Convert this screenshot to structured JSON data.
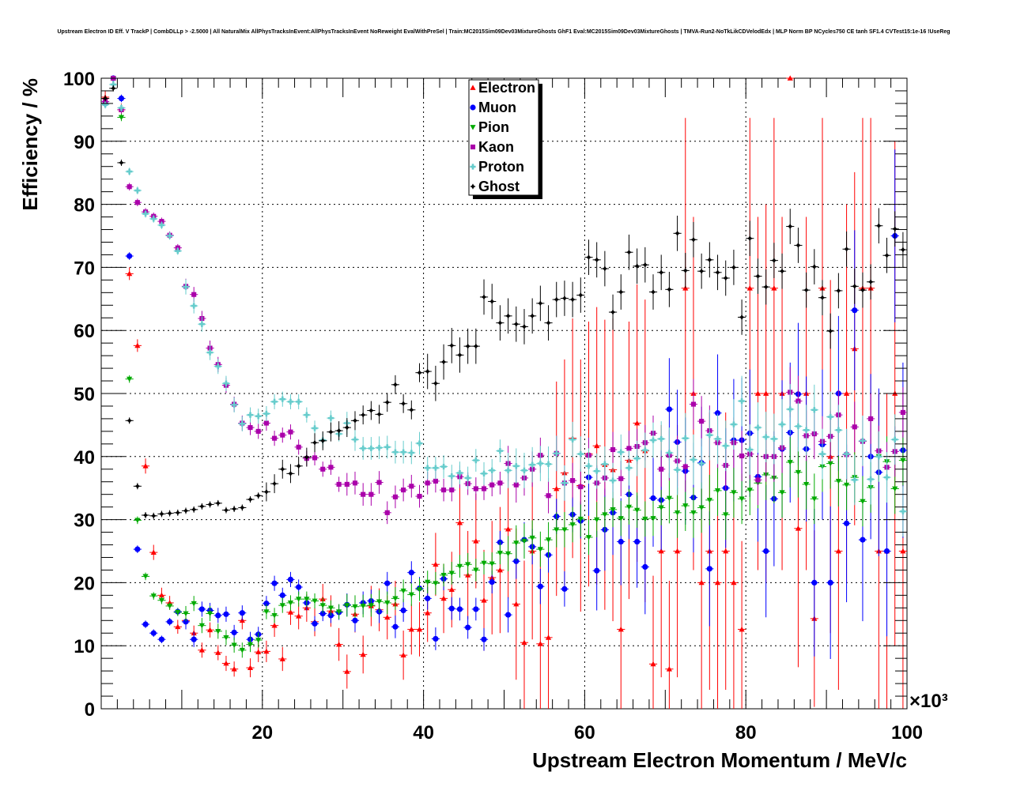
{
  "chart_data": {
    "type": "scatter",
    "title": "Upstream Electron ID Eff. V TrackP | CombDLLp > -2.5000 | All NaturalMix AllPhysTracksInEvent:AllPhysTracksInEvent NoReweight EvalWithPreSel | Train:MC2015Sim09Dev03MixtureGhosts GhF1 Eval:MC2015Sim09Dev03MixtureGhosts | TMVA-Run2-NoTkLikCDVelodEdx | MLP Norm BP NCycles750 CE tanh SF1.4 CVTest15:1e-16 !UseReg",
    "xlabel": "Upstream Electron Momentum / MeV/c",
    "ylabel": "Efficiency / %",
    "x_exponent_label": "×10³",
    "xlim": [
      0,
      100
    ],
    "ylim": [
      0,
      100
    ],
    "x_ticks": [
      20,
      40,
      60,
      80,
      100
    ],
    "y_ticks": [
      0,
      10,
      20,
      30,
      40,
      50,
      60,
      70,
      80,
      90,
      100
    ],
    "grid": true,
    "legend_position": "top-center",
    "x": [
      0.5,
      1.5,
      2.5,
      3.5,
      4.5,
      5.5,
      6.5,
      7.5,
      8.5,
      9.5,
      10.5,
      11.5,
      12.5,
      13.5,
      14.5,
      15.5,
      16.5,
      17.5,
      18.5,
      19.5,
      20.5,
      21.5,
      22.5,
      23.5,
      24.5,
      25.5,
      26.5,
      27.5,
      28.5,
      29.5,
      30.5,
      31.5,
      32.5,
      33.5,
      34.5,
      35.5,
      36.5,
      37.5,
      38.5,
      39.5,
      40.5,
      41.5,
      42.5,
      43.5,
      44.5,
      45.5,
      46.5,
      47.5,
      48.5,
      49.5,
      50.5,
      51.5,
      52.5,
      53.5,
      54.5,
      55.5,
      56.5,
      57.5,
      58.5,
      59.5,
      60.5,
      61.5,
      62.5,
      63.5,
      64.5,
      65.5,
      66.5,
      67.5,
      68.5,
      69.5,
      70.5,
      71.5,
      72.5,
      73.5,
      74.5,
      75.5,
      76.5,
      77.5,
      78.5,
      79.5,
      80.5,
      81.5,
      82.5,
      83.5,
      84.5,
      85.5,
      86.5,
      87.5,
      88.5,
      89.5,
      90.5,
      91.5,
      92.5,
      93.5,
      94.5,
      95.5,
      96.5,
      97.5,
      98.5,
      99.5
    ],
    "series": [
      {
        "name": "Electron",
        "color": "#ff0000",
        "marker": "triangle-up",
        "values": [
          97,
          100,
          95,
          69,
          57.6,
          38.5,
          24.8,
          18,
          16.8,
          13,
          14,
          12,
          9.3,
          12.5,
          8.9,
          7.2,
          6.3,
          14,
          6.5,
          9,
          9.1,
          13.2,
          7.9,
          15.3,
          14.7,
          16,
          13.8,
          17.4,
          15.5,
          10.2,
          5.9,
          15,
          8.6,
          16.3,
          15.7,
          14.5,
          16.6,
          8.5,
          12.6,
          12.6,
          15.2,
          22.9,
          17.5,
          18.9,
          29.5,
          21.2,
          26.6,
          17.2,
          20.8,
          22,
          28.5,
          16.6,
          10.5,
          25,
          10.3,
          11.3,
          34.9,
          37.4,
          42.9,
          35.4,
          40.4,
          41.7,
          38.7,
          37.9,
          12.6,
          39.4,
          45.3,
          40.9,
          7.1,
          25,
          6.3,
          25,
          66.7,
          50,
          20,
          25,
          20,
          25,
          20,
          12.6,
          66.7,
          50,
          50,
          66.7,
          50,
          100,
          28.6,
          50,
          14.3,
          66.7,
          40,
          25,
          50,
          57.1,
          66.7,
          66.7,
          25,
          25,
          50,
          25
        ],
        "err": [
          1,
          0,
          1,
          1,
          1,
          1.2,
          1.2,
          1.2,
          1.1,
          1.1,
          1.1,
          1.2,
          1.2,
          1.2,
          1.2,
          1.2,
          1.2,
          1.4,
          1.5,
          1.6,
          1.7,
          1.8,
          1.9,
          2,
          2.1,
          2.2,
          2.3,
          2.4,
          2.5,
          2.6,
          2.7,
          2.9,
          3,
          3.2,
          3.4,
          3.5,
          3.7,
          3.9,
          4,
          4.3,
          4.6,
          5,
          5.5,
          6,
          6.5,
          7,
          7.5,
          8,
          9,
          10,
          11,
          12,
          13,
          14,
          15,
          16,
          17,
          18,
          19,
          20,
          21,
          22,
          23,
          24,
          14,
          22,
          22,
          24,
          14,
          20,
          14,
          20,
          27,
          28,
          20,
          22,
          20,
          22,
          20,
          14,
          27,
          28,
          30,
          27,
          28,
          0,
          22,
          28,
          14,
          27,
          28,
          22,
          30,
          28,
          27,
          27,
          25,
          25,
          40,
          25
        ]
      },
      {
        "name": "Muon",
        "color": "#0000ff",
        "marker": "circle",
        "values": [
          96,
          100,
          96.8,
          71.8,
          25.3,
          13.4,
          12,
          11,
          13.8,
          15.4,
          13.8,
          11,
          15.8,
          15.6,
          14.8,
          15,
          12.1,
          15.2,
          11,
          11.8,
          16.7,
          19.9,
          18,
          20.5,
          19.3,
          16.8,
          13.5,
          15.1,
          14.8,
          15.3,
          16.5,
          14,
          16.8,
          17.1,
          15.4,
          19.9,
          13,
          15.6,
          21.6,
          19.1,
          17.5,
          11.1,
          20.6,
          15.9,
          15.8,
          12.9,
          15.8,
          11,
          20.1,
          26.4,
          14.9,
          23.4,
          26.8,
          25.7,
          19.4,
          24.4,
          30.5,
          19,
          30.8,
          29.8,
          36.7,
          21.9,
          28.4,
          31.1,
          26.5,
          34,
          26.5,
          22.5,
          33.4,
          33.1,
          47.5,
          42.3,
          37.7,
          33.5,
          39,
          22.2,
          46.9,
          35,
          42.6,
          42.6,
          43.7,
          36.8,
          25,
          33.3,
          41.2,
          43.8,
          49.9,
          41.2,
          20,
          41.9,
          20,
          50,
          29.4,
          63.2,
          26.8,
          40,
          37.5,
          25,
          75,
          41
        ]
      },
      {
        "name": "Pion",
        "color": "#00aa00",
        "marker": "triangle-down",
        "values": [
          96,
          100,
          93.8,
          52.3,
          29.9,
          21,
          17.9,
          17.2,
          16.3,
          15.3,
          15.1,
          16.7,
          13.2,
          15.1,
          12.3,
          11.3,
          10.1,
          9.3,
          10.2,
          10.9,
          15.4,
          14.8,
          16.4,
          16.8,
          17.4,
          17.4,
          17.1,
          16.4,
          16,
          15.4,
          16.4,
          16.2,
          16.3,
          16.4,
          17,
          16.8,
          17.5,
          18.7,
          18.1,
          18.9,
          20.1,
          19.9,
          21.2,
          21.5,
          22.6,
          22.9,
          22,
          23.1,
          23,
          24.7,
          24.6,
          26.3,
          26.6,
          27.1,
          25.3,
          26.8,
          28.4,
          28.4,
          29.2,
          30.1,
          27.2,
          30,
          30.8,
          31.6,
          30.2,
          32,
          31.5,
          30.1,
          30.2,
          31.9,
          33.4,
          31.1,
          32.2,
          31.1,
          31.9,
          33.1,
          34.6,
          30.8,
          34.3,
          33.3,
          34.7,
          35.8,
          37.1,
          36.6,
          34.3,
          39.1,
          37.5,
          35.6,
          33.3,
          38.4,
          38.9,
          36.1,
          35.5,
          36.7,
          32.9,
          35.1,
          40,
          39.2,
          34.9,
          39.4
        ]
      },
      {
        "name": "Kaon",
        "color": "#aa00aa",
        "marker": "square",
        "values": [
          96.3,
          100,
          95,
          82.8,
          80.3,
          78.8,
          78.1,
          77.3,
          75.1,
          73.1,
          67,
          65.7,
          61.9,
          57.2,
          54.6,
          51.3,
          48.3,
          45.3,
          44.6,
          44,
          45.3,
          42.9,
          43.4,
          43.9,
          41.5,
          39.7,
          39.8,
          38,
          38.3,
          35.6,
          35.6,
          35.8,
          34,
          34,
          35.9,
          31.1,
          33.6,
          34.7,
          35.3,
          33.7,
          35.8,
          36.1,
          34.7,
          34.7,
          36.8,
          35.7,
          34.9,
          34.9,
          35.5,
          35.8,
          38.9,
          35.5,
          36.6,
          38,
          40.2,
          33.8,
          40.5,
          35.8,
          36.2,
          35.2,
          40.2,
          35.8,
          36.6,
          41.1,
          36.5,
          41.3,
          41.6,
          42.2,
          43.7,
          38,
          40.2,
          39.3,
          38.4,
          48.3,
          45.6,
          44.1,
          42.2,
          38.6,
          42.2,
          40.1,
          40.4,
          36.3,
          40,
          40,
          41.4,
          50.2,
          48.8,
          43.3,
          43.6,
          42.4,
          43.2,
          46.6,
          40.3,
          44.7,
          42.4,
          46,
          40.9,
          38.3,
          40.8,
          47
        ]
      },
      {
        "name": "Proton",
        "color": "#66cccc",
        "marker": "cross",
        "values": [
          95.8,
          99,
          95.3,
          85.2,
          82.2,
          78.5,
          77.7,
          76.7,
          75,
          72.6,
          66.9,
          63.9,
          61,
          56.5,
          54.3,
          51.6,
          48.2,
          45.2,
          46.6,
          46.4,
          46.8,
          48.7,
          49.1,
          48.7,
          48.7,
          46.6,
          44.5,
          42.6,
          46.1,
          43.6,
          45.3,
          42.7,
          41.3,
          41.3,
          41.4,
          41.5,
          40.7,
          40.7,
          40.6,
          42.1,
          38.2,
          38.2,
          38.4,
          36.9,
          37.4,
          36.6,
          39.4,
          37.3,
          37.8,
          40.9,
          37.8,
          38.5,
          37.8,
          38.7,
          38.9,
          38.8,
          40.5,
          35.8,
          42.7,
          40.4,
          38.5,
          37.7,
          38.8,
          36.2,
          40.7,
          38.2,
          39.7,
          41,
          42.6,
          42.8,
          40.6,
          37.9,
          42.9,
          39.5,
          38.9,
          43.4,
          42.8,
          41.7,
          45.1,
          48.8,
          41.1,
          44.6,
          43.1,
          42.8,
          45.1,
          47.5,
          44.8,
          44.2,
          47.4,
          40.4,
          46.3,
          44.2,
          40.4,
          36.3,
          42.5,
          36.4,
          40,
          36.7,
          42.7,
          31.3
        ]
      },
      {
        "name": "Ghost",
        "color": "#000000",
        "marker": "star",
        "values": [
          96.8,
          98.4,
          86.6,
          45.7,
          35.3,
          30.7,
          30.6,
          30.9,
          31,
          31.1,
          31.4,
          31.6,
          32.1,
          32.4,
          32.6,
          31.5,
          31.7,
          31.9,
          33.2,
          33.8,
          34.4,
          35.7,
          38,
          37.3,
          38.5,
          39.9,
          42.2,
          42.5,
          43.9,
          44.1,
          44.6,
          45.7,
          46.6,
          47.3,
          46.7,
          48.6,
          51.4,
          48.4,
          47.4,
          53.3,
          53.5,
          51.6,
          55,
          57.6,
          56.1,
          57.5,
          57.5,
          65.3,
          64.6,
          61.2,
          62.3,
          61,
          60.6,
          62.3,
          64.3,
          61.2,
          64.9,
          65.1,
          64.9,
          65.6,
          71.6,
          71.2,
          69.8,
          62.9,
          66.1,
          72.4,
          70.2,
          70.4,
          66.1,
          69.2,
          66.5,
          75.4,
          69.5,
          74.4,
          69.4,
          71.2,
          69.2,
          68.3,
          70,
          62.1,
          74.6,
          68.6,
          66.9,
          71.1,
          69.4,
          76.5,
          73.5,
          66.4,
          70.1,
          65.2,
          59.9,
          66.3,
          72.9,
          67,
          66.4,
          67.7,
          76.6,
          71.9,
          76.1,
          72.8
        ]
      }
    ]
  }
}
